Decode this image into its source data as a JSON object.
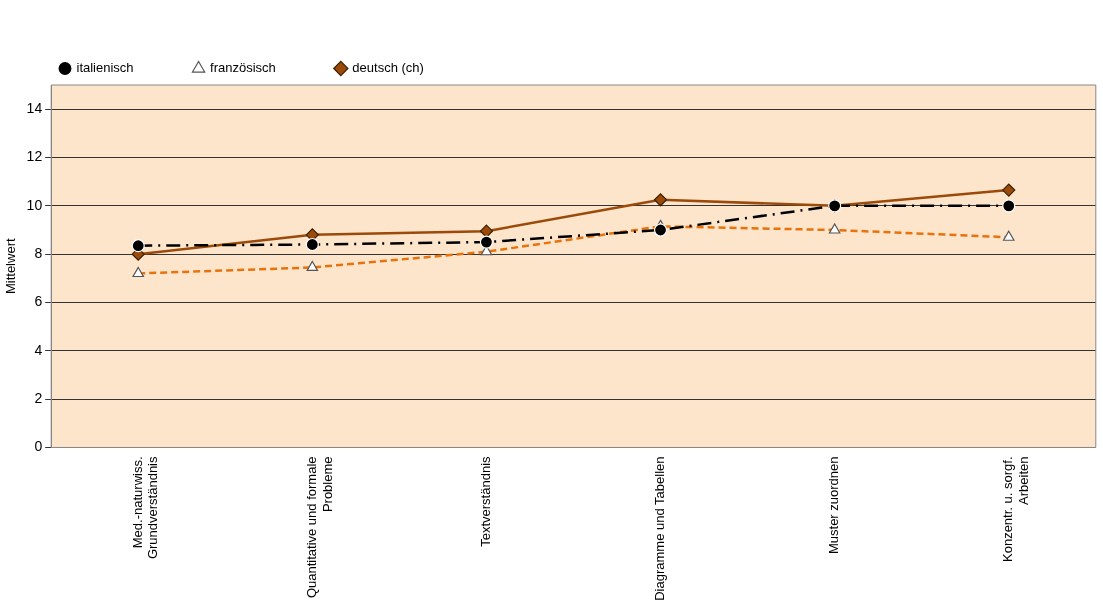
{
  "chart_data": {
    "type": "line",
    "ylabel": "Mittelwert",
    "categories": [
      "Med.-naturwiss.\nGrundverständnis",
      "Quantitative und formale\nProbleme",
      "Textverständnis",
      "Diagramme und Tabellen",
      "Muster zuordnen",
      "Konzentr. u. sorgf.\nArbeiten"
    ],
    "series": [
      {
        "name": "deutsch (ch)",
        "color": "#9c4a0a",
        "marker": "diamond",
        "line_style": "solid",
        "values": [
          8.0,
          8.8,
          8.95,
          10.25,
          10.0,
          10.65
        ]
      },
      {
        "name": "französisch",
        "color": "#e8720c",
        "marker": "triangle",
        "line_style": "dashed",
        "values": [
          7.2,
          7.45,
          8.1,
          9.15,
          9.0,
          8.7
        ]
      },
      {
        "name": "italienisch",
        "color": "#000000",
        "marker": "circle",
        "line_style": "dashdot",
        "values": [
          8.35,
          8.4,
          8.5,
          9.0,
          10.0,
          10.0
        ]
      }
    ],
    "ylim": [
      0,
      15
    ],
    "yticks": [
      0,
      2,
      4,
      6,
      8,
      10,
      12,
      14
    ],
    "grid": "y",
    "legend": "top left"
  }
}
